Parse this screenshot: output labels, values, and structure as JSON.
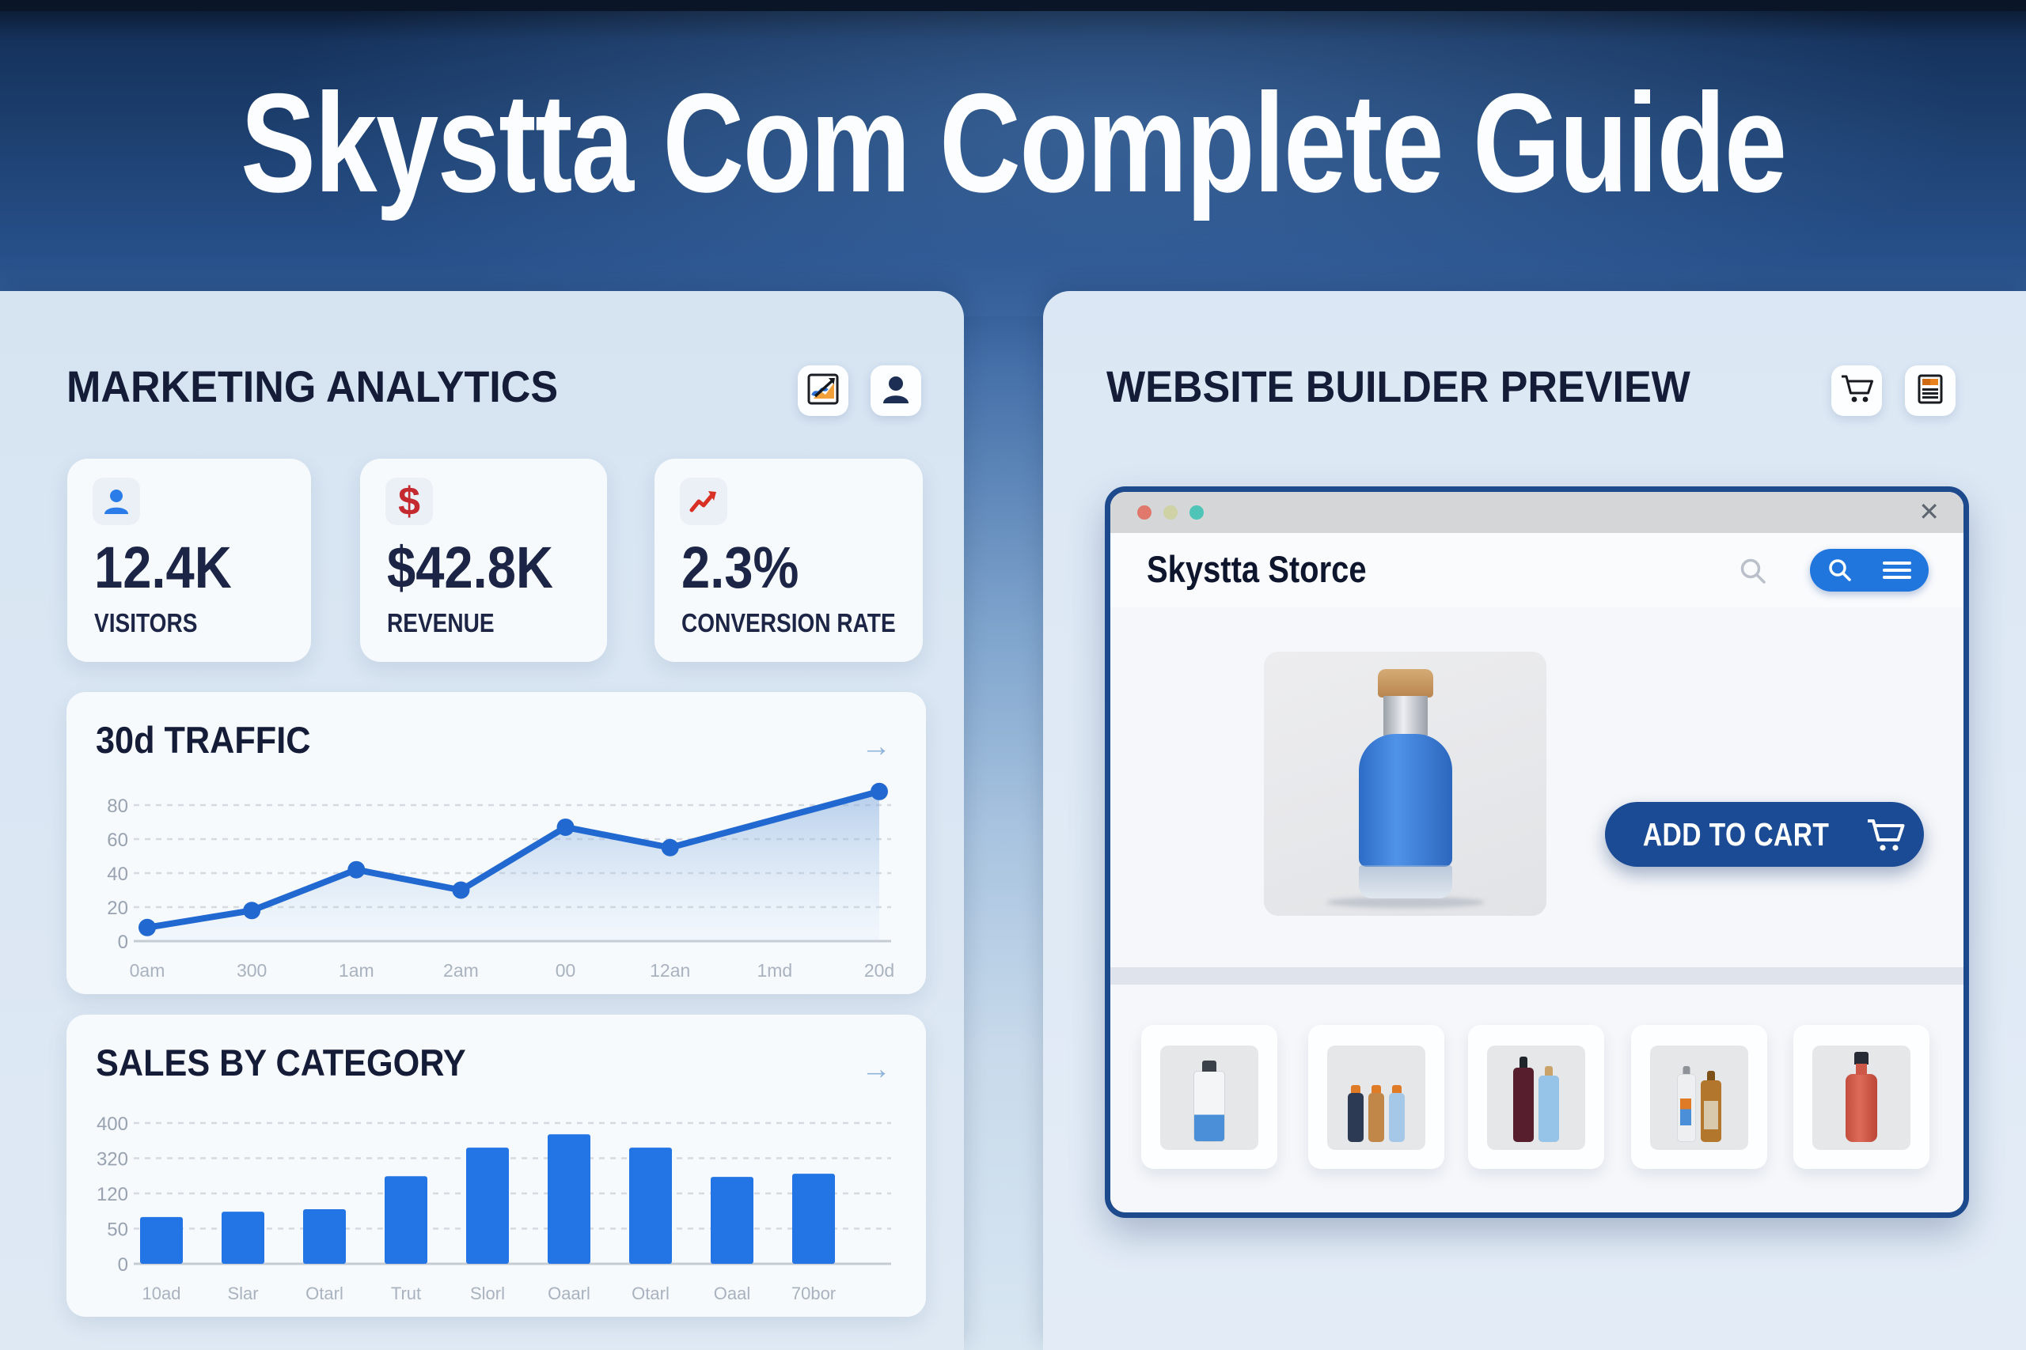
{
  "header": {
    "title": "Skystta Com Complete Guide"
  },
  "analytics": {
    "title": "MARKETING ANALYTICS",
    "stats": [
      {
        "icon": "visitors-icon",
        "value": "12.4K",
        "label": "VISITORS"
      },
      {
        "icon": "dollar-icon",
        "icon_glyph": "$",
        "value": "$42.8K",
        "label": "REVENUE"
      },
      {
        "icon": "trend-up-icon",
        "value": "2.3%",
        "label": "CONVERSION RATE"
      }
    ],
    "traffic": {
      "title": "30d TRAFFIC",
      "arrow": "→"
    },
    "sales": {
      "title": "SALES BY CATEGORY",
      "arrow": "→"
    }
  },
  "builder": {
    "title": "WEBSITE BUILDER PREVIEW",
    "browser": {
      "close": "✕",
      "brand": "Skystta Storce",
      "add_to_cart": "ADD TO CART"
    }
  },
  "colors": {
    "accent_blue": "#2176dd",
    "button_navy": "#1b4b94",
    "line_blue": "#2168d1",
    "bar_blue": "#2374e4",
    "dollar_red": "#c3292e",
    "trend_red": "#d83025",
    "traffic_dots": [
      "#e0796c",
      "#ced2a4",
      "#4ec5b6"
    ]
  },
  "chart_data": [
    {
      "type": "line",
      "title": "30d TRAFFIC",
      "categories": [
        "0am",
        "300",
        "1am",
        "2am",
        "00",
        "12an",
        "1md",
        "20d"
      ],
      "values": [
        8,
        18,
        42,
        30,
        67,
        55,
        71.5,
        88
      ],
      "dot_indices": [
        0,
        1,
        2,
        3,
        4,
        5,
        7
      ],
      "ytick_labels": [
        "80",
        "60",
        "40",
        "20",
        "0"
      ],
      "ytick_values": [
        80,
        60,
        40,
        20,
        0
      ],
      "ylim": [
        0,
        100
      ],
      "grid": true,
      "legend": false,
      "area_fill": true,
      "line_color": "#2168d1"
    },
    {
      "type": "bar",
      "title": "SALES BY CATEGORY",
      "categories": [
        "10ad",
        "Slar",
        "Otarl",
        "Trut",
        "Slorl",
        "Oaarl",
        "Otarl",
        "Oaal",
        "70bor"
      ],
      "values": [
        133,
        148,
        155,
        249,
        330,
        368,
        330,
        247,
        256
      ],
      "ytick_labels": [
        "400",
        "320",
        "120",
        "50",
        "0"
      ],
      "ylim": [
        0,
        400
      ],
      "grid": true,
      "legend": false,
      "bar_color": "#2374e4"
    }
  ]
}
